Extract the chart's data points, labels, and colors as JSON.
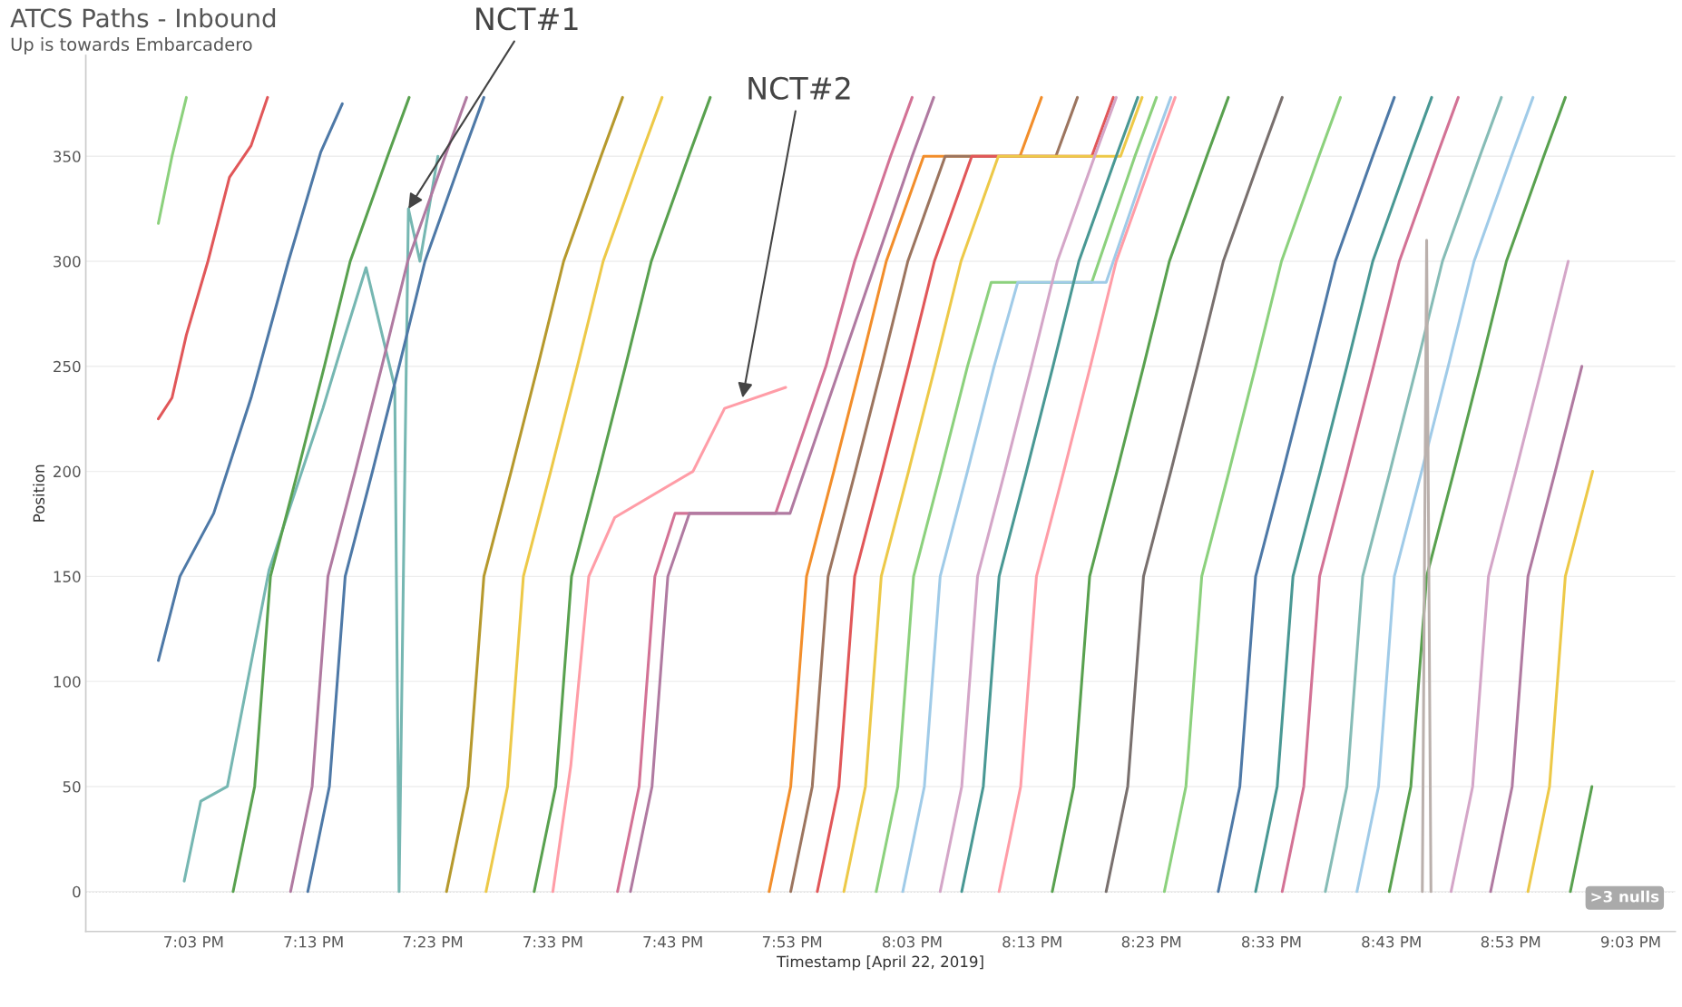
{
  "chart_data": {
    "type": "line",
    "title": "ATCS Paths - Inbound",
    "subtitle": "Up is towards Embarcadero",
    "xlabel": "Timestamp [April 22, 2019]",
    "ylabel": "Position",
    "xlim": [
      18.9,
      21.112
    ],
    "ylim": [
      -19,
      398
    ],
    "xticks": [
      {
        "value": 19.05,
        "label": "7:03 PM"
      },
      {
        "value": 19.217,
        "label": "7:13 PM"
      },
      {
        "value": 19.383,
        "label": "7:23 PM"
      },
      {
        "value": 19.55,
        "label": "7:33 PM"
      },
      {
        "value": 19.717,
        "label": "7:43 PM"
      },
      {
        "value": 19.883,
        "label": "7:53 PM"
      },
      {
        "value": 20.05,
        "label": "8:03 PM"
      },
      {
        "value": 20.217,
        "label": "8:13 PM"
      },
      {
        "value": 20.383,
        "label": "8:23 PM"
      },
      {
        "value": 20.55,
        "label": "8:33 PM"
      },
      {
        "value": 20.717,
        "label": "8:43 PM"
      },
      {
        "value": 20.883,
        "label": "8:53 PM"
      },
      {
        "value": 21.05,
        "label": "9:03 PM"
      }
    ],
    "yticks": [
      0,
      50,
      100,
      150,
      200,
      250,
      300,
      350
    ],
    "grid": "y",
    "legend": false,
    "line_style": "solid",
    "ref_lines": [
      {
        "axis": "y",
        "value": 0,
        "color": "#999999",
        "line_style": "dotted"
      }
    ],
    "annotations": [
      {
        "text": "NCT#1",
        "x": 19.349,
        "y": 325
      },
      {
        "text": "NCT#2",
        "x": 19.814,
        "y": 235
      },
      ">3 nulls"
    ],
    "series": [
      {
        "color": "#e15759",
        "x": [
          19.001,
          19.02,
          19.04,
          19.07,
          19.1,
          19.13,
          19.153
        ],
        "values": [
          225,
          235,
          265,
          300,
          340,
          355,
          378
        ]
      },
      {
        "color": "#4e79a7",
        "x": [
          19.001,
          19.031,
          19.078,
          19.13,
          19.182,
          19.227,
          19.257
        ],
        "values": [
          110,
          150,
          180,
          235,
          300,
          352,
          375
        ]
      },
      {
        "color": "#8cd17d",
        "x": [
          19.001,
          19.02,
          19.04
        ],
        "values": [
          318,
          350,
          378
        ]
      },
      {
        "color": "#76b7b2",
        "x": [
          19.037,
          19.06,
          19.097,
          19.155,
          19.23,
          19.261,
          19.29,
          19.33,
          19.336,
          19.349,
          19.365,
          19.39
        ],
        "values": [
          5,
          43,
          50,
          153,
          230,
          265,
          297,
          240,
          0,
          325,
          300,
          350
        ]
      },
      {
        "color": "#59a14f",
        "x": [
          19.105,
          19.135,
          19.157,
          19.195,
          19.232,
          19.268,
          19.32,
          19.35
        ],
        "values": [
          0,
          50,
          150,
          200,
          250,
          300,
          350,
          378
        ]
      },
      {
        "color": "#b07aa1",
        "x": [
          19.185,
          19.215,
          19.237,
          19.275,
          19.312,
          19.348,
          19.4,
          19.43
        ],
        "values": [
          0,
          50,
          150,
          200,
          250,
          300,
          350,
          378
        ]
      },
      {
        "color": "#4e79a7",
        "x": [
          19.209,
          19.239,
          19.261,
          19.299,
          19.336,
          19.372,
          19.424,
          19.454
        ],
        "values": [
          0,
          50,
          150,
          200,
          250,
          300,
          350,
          378
        ]
      },
      {
        "color": "#b6992d",
        "x": [
          19.402,
          19.432,
          19.454,
          19.492,
          19.529,
          19.565,
          19.617,
          19.647
        ],
        "values": [
          0,
          50,
          150,
          200,
          250,
          300,
          350,
          378
        ]
      },
      {
        "color": "#edc948",
        "x": [
          19.457,
          19.487,
          19.509,
          19.547,
          19.584,
          19.62,
          19.672,
          19.702
        ],
        "values": [
          0,
          50,
          150,
          200,
          250,
          300,
          350,
          378
        ]
      },
      {
        "color": "#59a14f",
        "x": [
          19.524,
          19.554,
          19.576,
          19.614,
          19.651,
          19.687,
          19.739,
          19.769
        ],
        "values": [
          0,
          50,
          150,
          200,
          250,
          300,
          350,
          378
        ]
      },
      {
        "color": "#ff9da7",
        "x": [
          19.55,
          19.575,
          19.6,
          19.636,
          19.745,
          19.789,
          19.874
        ],
        "values": [
          0,
          60,
          150,
          178,
          200,
          230,
          240
        ]
      },
      {
        "color": "#d37295",
        "x": [
          19.64,
          19.67,
          19.692,
          19.72,
          19.86,
          19.88,
          19.93,
          19.97,
          20.02,
          20.05
        ],
        "values": [
          0,
          50,
          150,
          180,
          180,
          200,
          250,
          300,
          350,
          378
        ]
      },
      {
        "color": "#b07aa1",
        "x": [
          19.658,
          19.688,
          19.71,
          19.74,
          19.88,
          19.9,
          19.93,
          20.0,
          20.05,
          20.08
        ],
        "values": [
          0,
          50,
          150,
          180,
          180,
          200,
          230,
          300,
          350,
          378
        ]
      },
      {
        "color": "#f28e2b",
        "x": [
          19.851,
          19.881,
          19.903,
          19.941,
          19.978,
          20.014,
          20.066,
          20.2,
          20.23
        ],
        "values": [
          0,
          50,
          150,
          200,
          250,
          300,
          350,
          350,
          378
        ]
      },
      {
        "color": "#9c755f",
        "x": [
          19.881,
          19.911,
          19.933,
          19.971,
          20.008,
          20.044,
          20.096,
          20.25,
          20.28
        ],
        "values": [
          0,
          50,
          150,
          200,
          250,
          300,
          350,
          350,
          378
        ]
      },
      {
        "color": "#e15759",
        "x": [
          19.918,
          19.948,
          19.97,
          20.008,
          20.045,
          20.081,
          20.133,
          20.3,
          20.33
        ],
        "values": [
          0,
          50,
          150,
          200,
          250,
          300,
          350,
          350,
          378
        ]
      },
      {
        "color": "#edc948",
        "x": [
          19.955,
          19.985,
          20.007,
          20.045,
          20.082,
          20.118,
          20.17,
          20.34,
          20.37
        ],
        "values": [
          0,
          50,
          150,
          200,
          250,
          300,
          350,
          350,
          378
        ]
      },
      {
        "color": "#8cd17d",
        "x": [
          20.0,
          20.03,
          20.052,
          20.09,
          20.127,
          20.16,
          20.3,
          20.36,
          20.39
        ],
        "values": [
          0,
          50,
          150,
          200,
          250,
          290,
          290,
          350,
          378
        ]
      },
      {
        "color": "#a0cbe8",
        "x": [
          20.037,
          20.067,
          20.089,
          20.127,
          20.164,
          20.197,
          20.32,
          20.38,
          20.41
        ],
        "values": [
          0,
          50,
          150,
          200,
          250,
          290,
          290,
          350,
          378
        ]
      },
      {
        "color": "#d4a6c8",
        "x": [
          20.089,
          20.119,
          20.141,
          20.179,
          20.216,
          20.252,
          20.304,
          20.334
        ],
        "values": [
          0,
          50,
          150,
          200,
          250,
          300,
          350,
          378
        ]
      },
      {
        "color": "#499894",
        "x": [
          20.119,
          20.149,
          20.171,
          20.209,
          20.246,
          20.282,
          20.334,
          20.364
        ],
        "values": [
          0,
          50,
          150,
          200,
          250,
          300,
          350,
          378
        ]
      },
      {
        "color": "#ff9da7",
        "x": [
          20.171,
          20.201,
          20.223,
          20.261,
          20.298,
          20.334,
          20.386,
          20.416
        ],
        "values": [
          0,
          50,
          150,
          200,
          250,
          300,
          350,
          378
        ]
      },
      {
        "color": "#59a14f",
        "x": [
          20.245,
          20.275,
          20.297,
          20.335,
          20.372,
          20.408,
          20.46,
          20.49
        ],
        "values": [
          0,
          50,
          150,
          200,
          250,
          300,
          350,
          378
        ]
      },
      {
        "color": "#79706e",
        "x": [
          20.32,
          20.35,
          20.372,
          20.41,
          20.447,
          20.483,
          20.535,
          20.565
        ],
        "values": [
          0,
          50,
          150,
          200,
          250,
          300,
          350,
          378
        ]
      },
      {
        "color": "#8cd17d",
        "x": [
          20.401,
          20.431,
          20.453,
          20.491,
          20.528,
          20.564,
          20.616,
          20.646
        ],
        "values": [
          0,
          50,
          150,
          200,
          250,
          300,
          350,
          378
        ]
      },
      {
        "color": "#4e79a7",
        "x": [
          20.476,
          20.506,
          20.528,
          20.566,
          20.603,
          20.639,
          20.691,
          20.721
        ],
        "values": [
          0,
          50,
          150,
          200,
          250,
          300,
          350,
          378
        ]
      },
      {
        "color": "#499894",
        "x": [
          20.528,
          20.558,
          20.58,
          20.618,
          20.655,
          20.691,
          20.743,
          20.773
        ],
        "values": [
          0,
          50,
          150,
          200,
          250,
          300,
          350,
          378
        ]
      },
      {
        "color": "#d37295",
        "x": [
          20.565,
          20.595,
          20.617,
          20.655,
          20.692,
          20.728,
          20.78,
          20.81
        ],
        "values": [
          0,
          50,
          150,
          200,
          250,
          300,
          350,
          378
        ]
      },
      {
        "color": "#86bcb6",
        "x": [
          20.625,
          20.655,
          20.677,
          20.715,
          20.752,
          20.788,
          20.84,
          20.87
        ],
        "values": [
          0,
          50,
          150,
          200,
          250,
          300,
          350,
          378
        ]
      },
      {
        "color": "#a0cbe8",
        "x": [
          20.669,
          20.699,
          20.721,
          20.759,
          20.796,
          20.832,
          20.884,
          20.914
        ],
        "values": [
          0,
          50,
          150,
          200,
          250,
          300,
          350,
          378
        ]
      },
      {
        "color": "#59a14f",
        "x": [
          20.714,
          20.744,
          20.766,
          20.804,
          20.841,
          20.877,
          20.929,
          20.959
        ],
        "values": [
          0,
          50,
          150,
          200,
          250,
          300,
          350,
          378
        ]
      },
      {
        "color": "#bab0ac",
        "x": [
          20.76,
          20.766,
          20.772
        ],
        "values": [
          0,
          310,
          0
        ]
      },
      {
        "color": "#d4a6c8",
        "x": [
          20.8,
          20.83,
          20.852,
          20.89,
          20.927,
          20.963
        ],
        "values": [
          0,
          50,
          150,
          200,
          250,
          300
        ]
      },
      {
        "color": "#b07aa1",
        "x": [
          20.855,
          20.885,
          20.907,
          20.945,
          20.982
        ],
        "values": [
          0,
          50,
          150,
          200,
          250
        ]
      },
      {
        "color": "#edc948",
        "x": [
          20.907,
          20.937,
          20.959,
          20.997
        ],
        "values": [
          0,
          50,
          150,
          200
        ]
      },
      {
        "color": "#59a14f",
        "x": [
          20.966,
          20.996
        ],
        "values": [
          0,
          50
        ]
      }
    ]
  }
}
